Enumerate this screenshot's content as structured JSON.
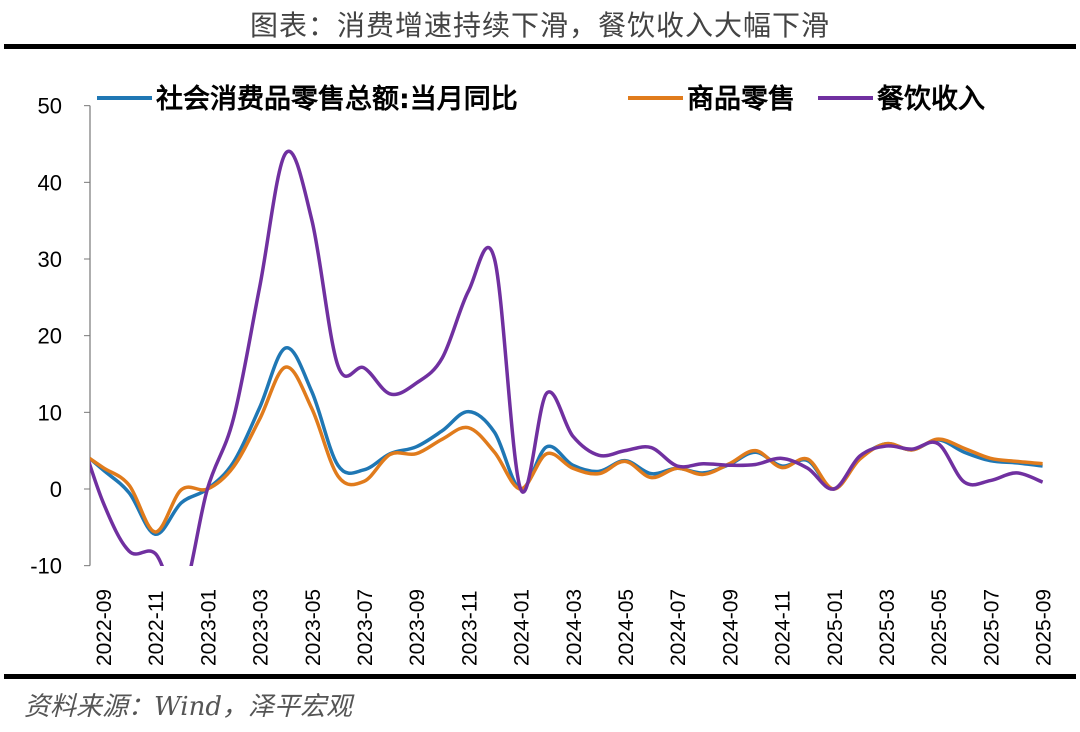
{
  "title": "图表：消费增速持续下滑，餐饮收入大幅下滑",
  "source": "资料来源：Wind，泽平宏观",
  "chart_data": {
    "type": "line",
    "ylim": [
      -10,
      50
    ],
    "yticks": [
      -10,
      0,
      10,
      20,
      30,
      40,
      50
    ],
    "legend_position": "top",
    "grid": false,
    "x": [
      "2022-08",
      "2022-09",
      "2022-10",
      "2022-11",
      "2022-12",
      "2023-01",
      "2023-02",
      "2023-03",
      "2023-04",
      "2023-05",
      "2023-06",
      "2023-07",
      "2023-08",
      "2023-09",
      "2023-10",
      "2023-11",
      "2023-12",
      "2024-01",
      "2024-02",
      "2024-03",
      "2024-04",
      "2024-05",
      "2024-06",
      "2024-07",
      "2024-08",
      "2024-09",
      "2024-10",
      "2024-11",
      "2024-12",
      "2025-01",
      "2025-02",
      "2025-03",
      "2025-04",
      "2025-05",
      "2025-06",
      "2025-07",
      "2025-08",
      "2025-09"
    ],
    "xtick_labels": [
      "2022-09",
      "2022-11",
      "2023-01",
      "2023-03",
      "2023-05",
      "2023-07",
      "2023-09",
      "2023-11",
      "2024-01",
      "2024-03",
      "2024-05",
      "2024-07",
      "2024-09",
      "2024-11",
      "2025-01",
      "2025-03",
      "2025-05",
      "2025-07",
      "2025-09"
    ],
    "series": [
      {
        "name": "社会消费品零售总额:当月同比",
        "color": "#1f77b4",
        "values": [
          5.4,
          2.5,
          -0.5,
          -5.9,
          -1.8,
          0,
          3.5,
          10.6,
          18.4,
          12.7,
          3.1,
          2.5,
          4.6,
          5.5,
          7.6,
          10.1,
          7.4,
          0,
          5.5,
          3.1,
          2.3,
          3.7,
          2.0,
          2.7,
          2.1,
          3.2,
          4.8,
          3.0,
          3.7,
          0,
          4.0,
          5.9,
          5.1,
          6.4,
          4.8,
          3.7,
          3.4,
          3.0
        ]
      },
      {
        "name": "商品零售",
        "color": "#e07b1c",
        "values": [
          5.1,
          2.8,
          0.5,
          -5.6,
          -0.1,
          0,
          2.9,
          9.1,
          15.9,
          10.5,
          1.7,
          1.0,
          4.5,
          4.6,
          6.5,
          8.0,
          4.8,
          0,
          4.6,
          2.7,
          2.0,
          3.6,
          1.5,
          2.7,
          1.9,
          3.3,
          5.0,
          2.8,
          3.9,
          0,
          3.9,
          5.9,
          5.1,
          6.5,
          5.3,
          4.0,
          3.6,
          3.3
        ]
      },
      {
        "name": "餐饮收入",
        "color": "#7030a0",
        "values": [
          8.4,
          -1.7,
          -8.1,
          -8.4,
          -14.1,
          0,
          9.2,
          26.3,
          43.8,
          35.1,
          16.1,
          15.8,
          12.4,
          13.8,
          17.1,
          25.8,
          30.0,
          0,
          12.5,
          6.9,
          4.4,
          5.0,
          5.4,
          3.0,
          3.3,
          3.1,
          3.2,
          4.0,
          2.7,
          0,
          4.3,
          5.6,
          5.2,
          5.9,
          0.9,
          1.1,
          2.1,
          0.9
        ]
      }
    ]
  }
}
